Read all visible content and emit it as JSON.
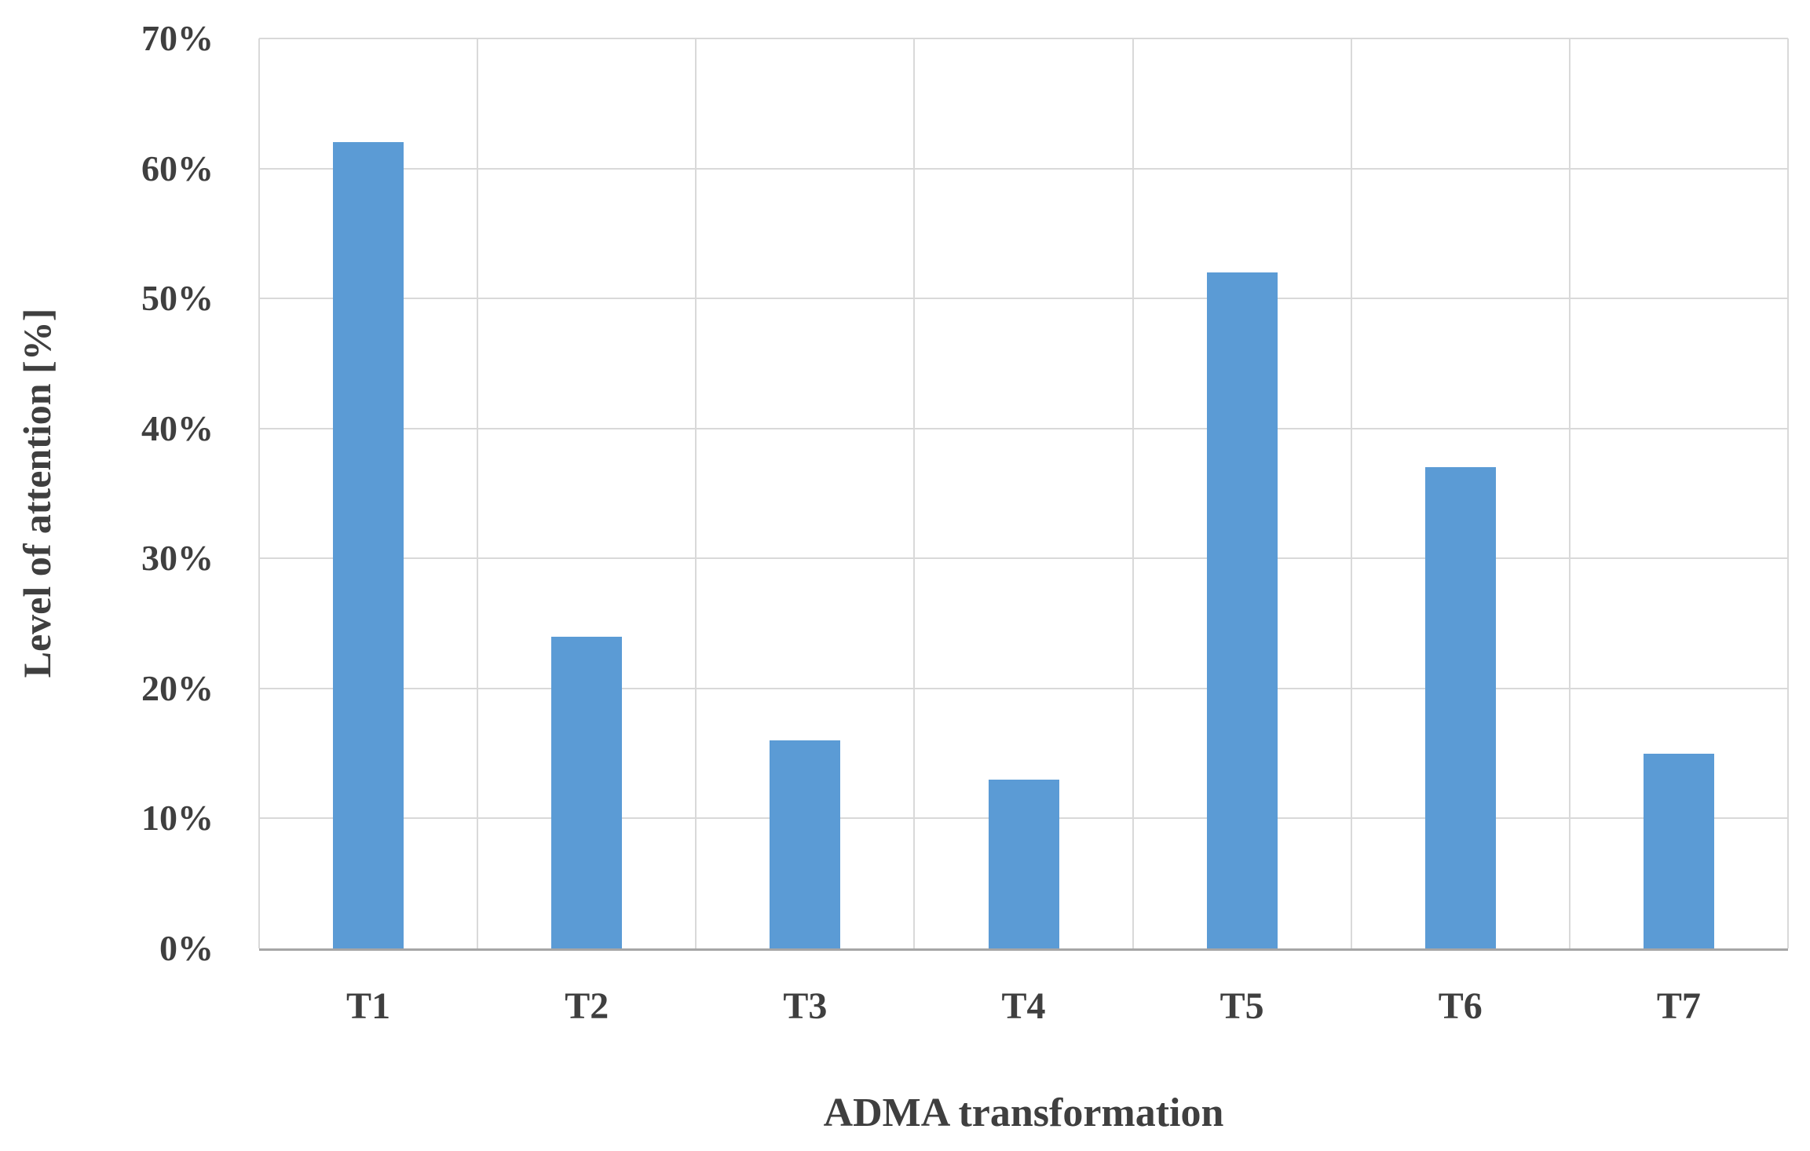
{
  "chart_data": {
    "type": "bar",
    "title": "",
    "xlabel": "ADMA transformation",
    "ylabel": "Level of attention [%]",
    "categories": [
      "T1",
      "T2",
      "T3",
      "T4",
      "T5",
      "T6",
      "T7"
    ],
    "values": [
      62,
      24,
      16,
      13,
      52,
      37,
      15
    ],
    "ylim": [
      0,
      70
    ],
    "ytick_step": 10,
    "ytick_labels": [
      "0%",
      "10%",
      "20%",
      "30%",
      "40%",
      "50%",
      "60%",
      "70%"
    ],
    "grid": true,
    "legend": "none",
    "bar_color": "#5b9bd5",
    "grid_color": "#d9d9d9",
    "axis_color": "#a6a6a6",
    "text_color": "#3f3f3f"
  }
}
